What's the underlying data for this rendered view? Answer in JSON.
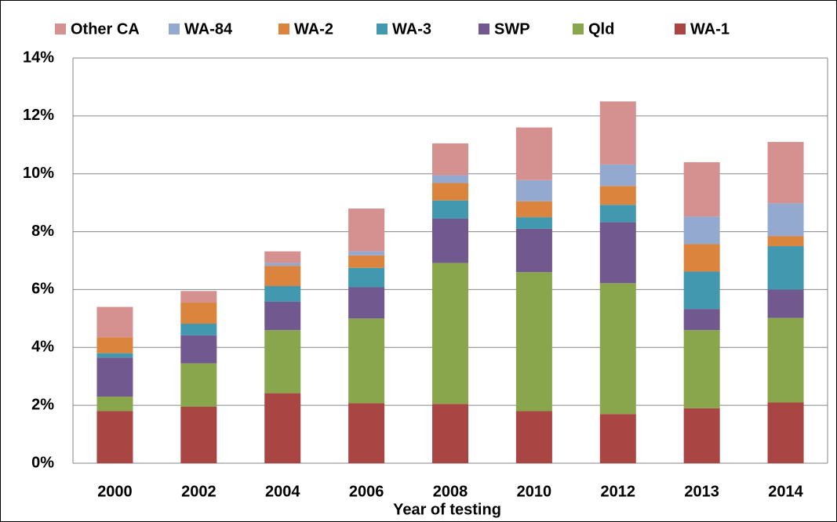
{
  "chart_data": {
    "type": "stacked_bar",
    "x_label": "Year of testing",
    "categories": [
      "2000",
      "2002",
      "2004",
      "2006",
      "2008",
      "2010",
      "2012",
      "2013",
      "2014"
    ],
    "series": [
      {
        "name": "WA-1",
        "color": "#a94543",
        "values": [
          1.8,
          1.95,
          2.42,
          2.07,
          2.05,
          1.8,
          1.7,
          1.9,
          2.1
        ]
      },
      {
        "name": "Qld",
        "color": "#8aa64c",
        "values": [
          0.5,
          1.5,
          2.18,
          2.93,
          4.87,
          4.8,
          4.52,
          2.7,
          2.92
        ]
      },
      {
        "name": "SWP",
        "color": "#71588f",
        "values": [
          1.35,
          0.97,
          0.98,
          1.08,
          1.53,
          1.5,
          2.11,
          0.73,
          0.98
        ]
      },
      {
        "name": "WA-3",
        "color": "#4298af",
        "values": [
          0.15,
          0.4,
          0.54,
          0.67,
          0.63,
          0.4,
          0.6,
          1.29,
          1.5
        ]
      },
      {
        "name": "WA-2",
        "color": "#db843d",
        "values": [
          0.55,
          0.73,
          0.7,
          0.43,
          0.6,
          0.55,
          0.65,
          0.95,
          0.35
        ]
      },
      {
        "name": "WA-84",
        "color": "#93a9cf",
        "values": [
          0,
          0,
          0.1,
          0.14,
          0.27,
          0.73,
          0.74,
          0.95,
          1.13
        ]
      },
      {
        "name": "Other CA",
        "color": "#d49190",
        "values": [
          1.05,
          0.4,
          0.4,
          1.48,
          1.1,
          1.82,
          2.18,
          1.88,
          2.12
        ]
      }
    ],
    "ylim": [
      0,
      14
    ],
    "yticks": [
      {
        "value": 0,
        "label": "0%"
      },
      {
        "value": 2,
        "label": "2%"
      },
      {
        "value": 4,
        "label": "4%"
      },
      {
        "value": 6,
        "label": "6%"
      },
      {
        "value": 8,
        "label": "8%"
      },
      {
        "value": 10,
        "label": "10%"
      },
      {
        "value": 12,
        "label": "12%"
      },
      {
        "value": 14,
        "label": "14%"
      }
    ],
    "grid": true,
    "legend": "top"
  }
}
